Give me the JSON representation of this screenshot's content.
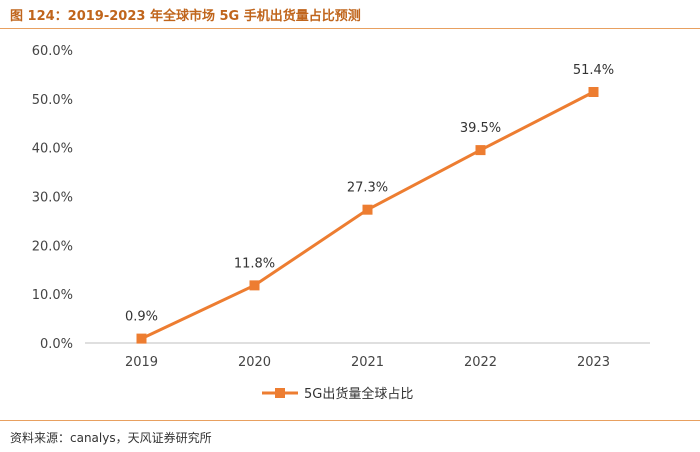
{
  "header": {
    "title": "图 124：2019-2023 年全球市场 5G 手机出货量占比预测"
  },
  "footer": {
    "source": "资料来源：canalys，天风证券研究所"
  },
  "colors": {
    "series": "#ed7d31",
    "axis": "#bfbfbf",
    "title": "#c0651c"
  },
  "chart_data": {
    "type": "line",
    "title": "",
    "xlabel": "",
    "ylabel": "",
    "categories": [
      "2019",
      "2020",
      "2021",
      "2022",
      "2023"
    ],
    "series": [
      {
        "name": "5G出货量全球占比",
        "values": [
          0.9,
          11.8,
          27.3,
          39.5,
          51.4
        ],
        "labels": [
          "0.9%",
          "11.8%",
          "27.3%",
          "39.5%",
          "51.4%"
        ]
      }
    ],
    "ylim": [
      0,
      60
    ],
    "yticks": [
      "0.0%",
      "10.0%",
      "20.0%",
      "30.0%",
      "40.0%",
      "50.0%",
      "60.0%"
    ],
    "ytick_values": [
      0,
      10,
      20,
      30,
      40,
      50,
      60
    ],
    "grid": false,
    "legend_position": "bottom",
    "marker": "square"
  }
}
